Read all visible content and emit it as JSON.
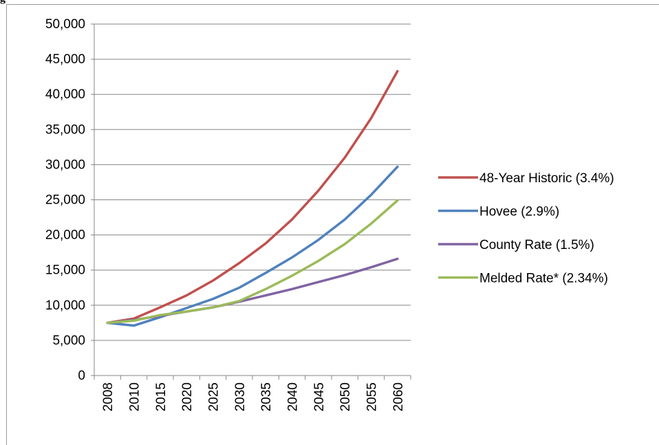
{
  "page_label": "g",
  "chart_data": {
    "type": "line",
    "title": "",
    "xlabel": "",
    "ylabel": "",
    "categories": [
      "2008",
      "2010",
      "2015",
      "2020",
      "2025",
      "2030",
      "2035",
      "2040",
      "2045",
      "2050",
      "2055",
      "2060"
    ],
    "ylim": [
      0,
      50000
    ],
    "yticks": [
      0,
      5000,
      10000,
      15000,
      20000,
      25000,
      30000,
      35000,
      40000,
      45000,
      50000
    ],
    "ytick_labels": [
      "0",
      "5,000",
      "10,000",
      "15,000",
      "20,000",
      "25,000",
      "30,000",
      "35,000",
      "40,000",
      "45,000",
      "50,000"
    ],
    "grid": "horizontal",
    "legend_position": "right",
    "series": [
      {
        "name": "48-Year Historic (3.4%)",
        "color": "#c0504d",
        "values": [
          7500,
          8100,
          9700,
          11400,
          13500,
          16000,
          18800,
          22200,
          26300,
          31000,
          36600,
          43300
        ]
      },
      {
        "name": "Hovee  (2.9%)",
        "color": "#4f81bd",
        "values": [
          7500,
          7100,
          8300,
          9600,
          10900,
          12500,
          14600,
          16800,
          19300,
          22200,
          25700,
          29700
        ]
      },
      {
        "name": "County Rate (1.5%)",
        "color": "#8064a2",
        "values": [
          7500,
          7900,
          8500,
          9100,
          9700,
          10500,
          11400,
          12300,
          13300,
          14300,
          15400,
          16600
        ]
      },
      {
        "name": "Melded Rate* (2.34%)",
        "color": "#9bbb59",
        "values": [
          7500,
          7800,
          8600,
          9100,
          9700,
          10600,
          12300,
          14200,
          16300,
          18700,
          21600,
          24900
        ]
      }
    ]
  }
}
